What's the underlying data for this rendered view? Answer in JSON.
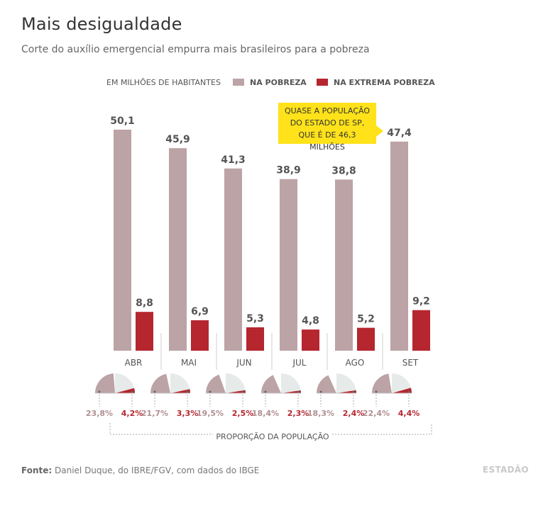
{
  "header": {
    "title": "Mais desigualdade",
    "subtitle": "Corte do auxílio emergencial empurra mais brasileiros para a pobreza"
  },
  "annotation": "QUASE A POPULAÇÃO DO ESTADO DE SP, QUE É DE 46,3 MILHÕES",
  "footer": {
    "source_label": "Fonte:",
    "source_text": "Daniel Duque, do IBRE/FGV, com dados do IBGE",
    "logo": "ESTADÃO"
  },
  "colors": {
    "pobreza": "#bca3a6",
    "extrema": "#b5262f",
    "pobreza_text": "#b08f92",
    "pie_bg": "#e6ebe9"
  },
  "chart_data": {
    "type": "bar",
    "unit_label": "EM MILHÕES DE HABITANTES",
    "categories": [
      "ABR",
      "MAI",
      "JUN",
      "JUL",
      "AGO",
      "SET"
    ],
    "series": [
      {
        "name": "NA POBREZA",
        "values": [
          50.1,
          45.9,
          41.3,
          38.9,
          38.8,
          47.4
        ],
        "labels": [
          "50,1",
          "45,9",
          "41,3",
          "38,9",
          "38,8",
          "47,4"
        ]
      },
      {
        "name": "NA EXTREMA POBREZA",
        "values": [
          8.8,
          6.9,
          5.3,
          4.8,
          5.2,
          9.2
        ],
        "labels": [
          "8,8",
          "6,9",
          "5,3",
          "4,8",
          "5,2",
          "9,2"
        ]
      }
    ],
    "ylim": [
      0,
      50.1
    ],
    "proportion": {
      "label": "PROPORÇÃO DA POPULAÇÃO",
      "pobreza": [
        23.8,
        21.7,
        19.5,
        18.4,
        18.3,
        22.4
      ],
      "extrema": [
        4.2,
        3.3,
        2.5,
        2.3,
        2.4,
        4.4
      ],
      "pobreza_labels": [
        "23,8%",
        "21,7%",
        "19,5%",
        "18,4%",
        "18,3%",
        "22,4%"
      ],
      "extrema_labels": [
        "4,2%",
        "3,3%",
        "2,5%",
        "2,3%",
        "2,4%",
        "4,4%"
      ]
    }
  }
}
